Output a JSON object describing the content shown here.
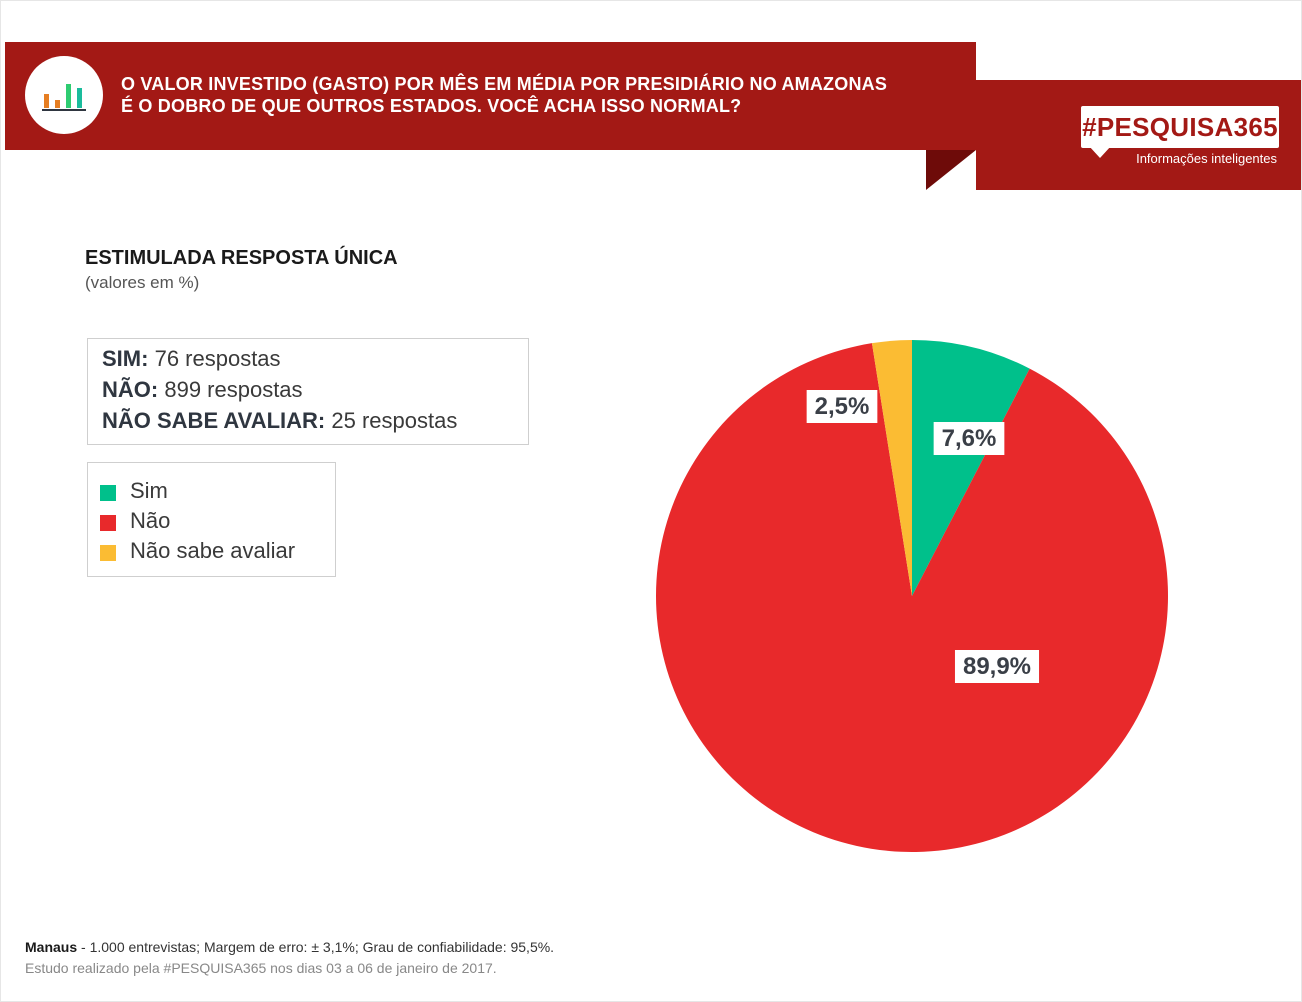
{
  "header": {
    "title_line1": "O VALOR INVESTIDO (GASTO) POR MÊS EM MÉDIA POR PRESIDIÁRIO NO AMAZONAS",
    "title_line2": "É O DOBRO DE QUE OUTROS ESTADOS. VOCÊ ACHA ISSO NORMAL?",
    "brand": "#PESQUISA365",
    "brand_tagline": "Informações inteligentes",
    "logo_icon": "bar-chart-icon"
  },
  "section": {
    "title": "ESTIMULADA RESPOSTA ÚNICA",
    "subtitle": "(valores em %)"
  },
  "responses": [
    {
      "label": "SIM:",
      "value": "76 respostas"
    },
    {
      "label": "NÃO:",
      "value": "899 respostas"
    },
    {
      "label": "NÃO SABE AVALIAR:",
      "value": "25 respostas"
    }
  ],
  "legend": [
    {
      "label": "Sim",
      "color": "#00c08b"
    },
    {
      "label": "Não",
      "color": "#e8292b"
    },
    {
      "label": "Não sabe avaliar",
      "color": "#fbbc33"
    }
  ],
  "chart_data": {
    "type": "pie",
    "categories": [
      "Sim",
      "Não",
      "Não sabe avaliar"
    ],
    "values": [
      7.6,
      89.9,
      2.5
    ],
    "value_labels": [
      "7,6%",
      "89,9%",
      "2,5%"
    ],
    "colors": [
      "#00c08b",
      "#e8292b",
      "#fbbc33"
    ],
    "start": "12 o'clock, clockwise",
    "legend_position": "left"
  },
  "footer": {
    "location": "Manaus",
    "details": " - 1.000 entrevistas; Margem de erro: ± 3,1%; Grau de confiabilidade: 95,5%.",
    "note": "Estudo realizado pela #PESQUISA365 nos dias 03 a 06 de janeiro de 2017."
  },
  "colors": {
    "header_red": "#a31915",
    "header_dark": "#6e0b09"
  }
}
